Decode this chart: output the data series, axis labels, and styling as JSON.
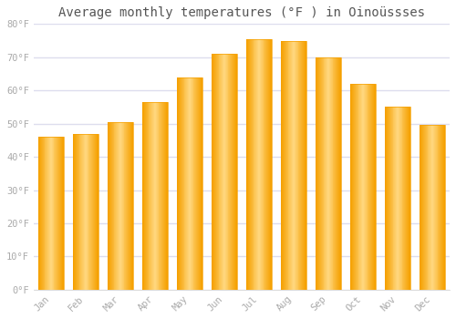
{
  "title": "Average monthly temperatures (°F ) in Oinoüssses",
  "months": [
    "Jan",
    "Feb",
    "Mar",
    "Apr",
    "May",
    "Jun",
    "Jul",
    "Aug",
    "Sep",
    "Oct",
    "Nov",
    "Dec"
  ],
  "values": [
    46,
    47,
    50.5,
    56.5,
    64,
    71,
    75.5,
    75,
    70,
    62,
    55,
    49.5
  ],
  "bar_color_main": "#FFBB33",
  "bar_color_edge": "#F5A000",
  "bar_color_light": "#FFD880",
  "ylim": [
    0,
    80
  ],
  "yticks": [
    0,
    10,
    20,
    30,
    40,
    50,
    60,
    70,
    80
  ],
  "ytick_labels": [
    "0°F",
    "10°F",
    "20°F",
    "30°F",
    "40°F",
    "50°F",
    "60°F",
    "70°F",
    "80°F"
  ],
  "background_color": "#ffffff",
  "plot_bg_color": "#ffffff",
  "grid_color": "#ddddee",
  "title_fontsize": 10,
  "tick_fontsize": 7.5,
  "font_color": "#aaaaaa",
  "title_color": "#555555",
  "bar_width": 0.72
}
